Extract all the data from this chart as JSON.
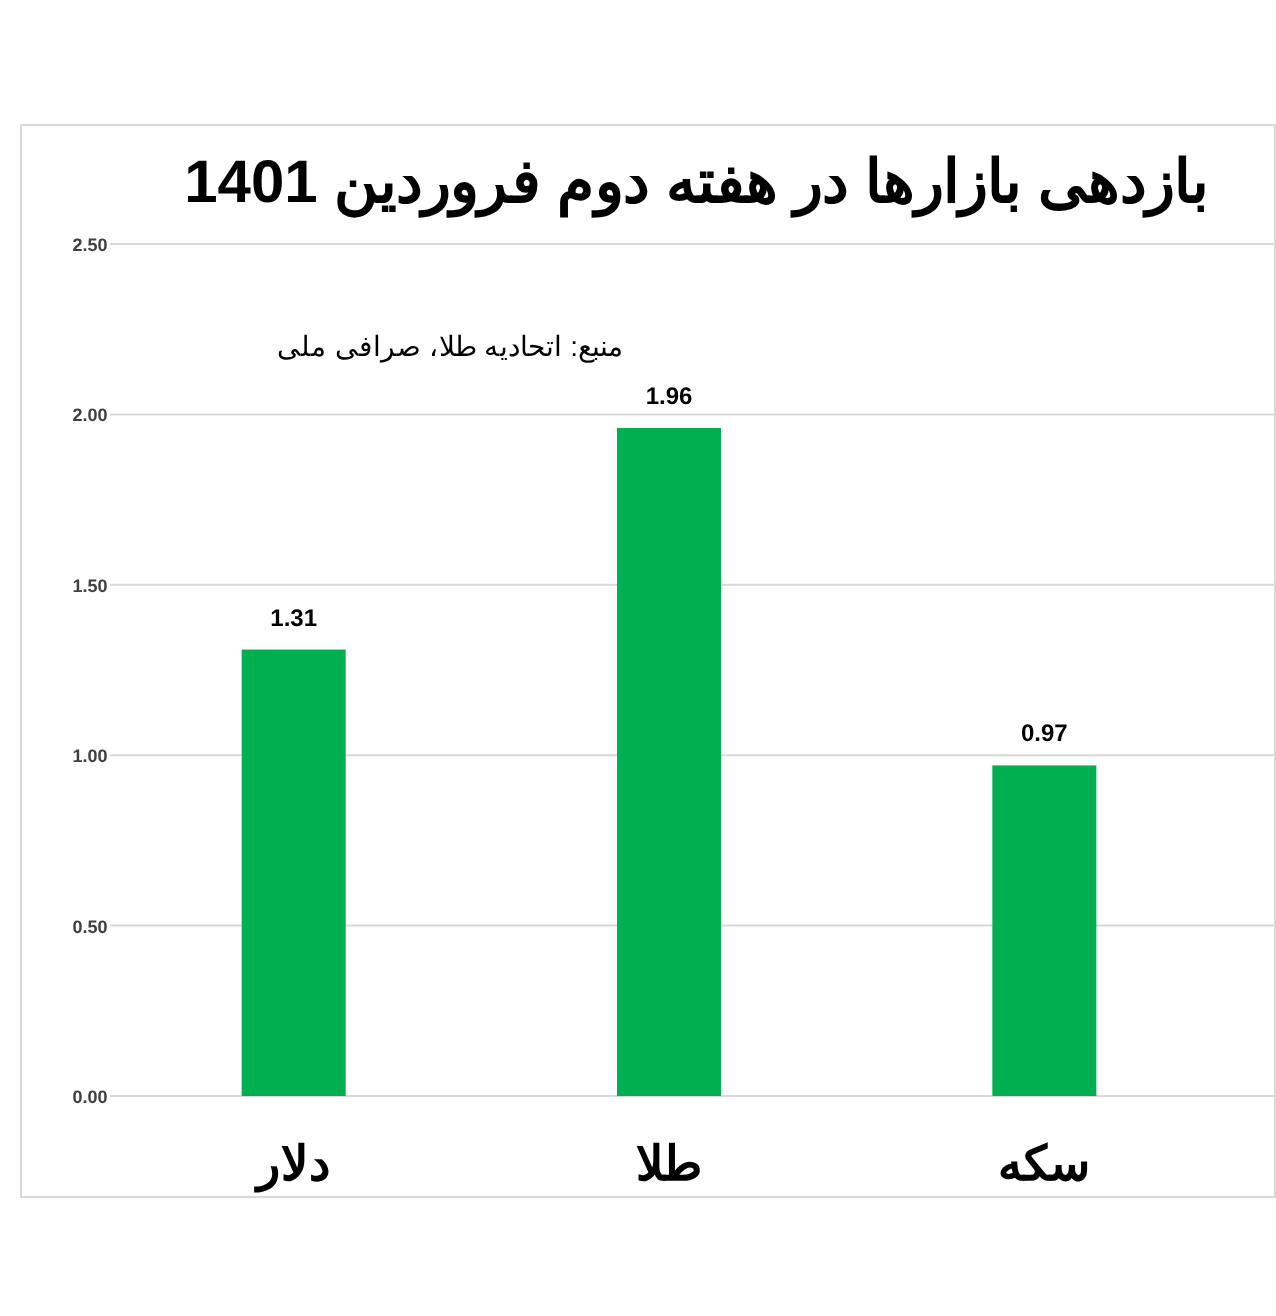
{
  "chart_data": {
    "type": "bar",
    "title": "بازدهی بازارها در هفته دوم فروردین 1401",
    "categories": [
      "دلار",
      "طلا",
      "سکه"
    ],
    "values": [
      1.31,
      1.96,
      0.97
    ],
    "color": "#00b050",
    "ylim": [
      0,
      2.5
    ],
    "yticks": [
      {
        "value": 0,
        "label": "0.00"
      },
      {
        "value": 0.5,
        "label": "0.50"
      },
      {
        "value": 1,
        "label": "1.00"
      },
      {
        "value": 1.5,
        "label": "1.50"
      },
      {
        "value": 2,
        "label": "2.00"
      },
      {
        "value": 2.5,
        "label": "2.50"
      }
    ],
    "grid": "y",
    "data_labels": true,
    "annotations": [
      "منبع: اتحادیه طلا، صرافی ملی"
    ]
  }
}
